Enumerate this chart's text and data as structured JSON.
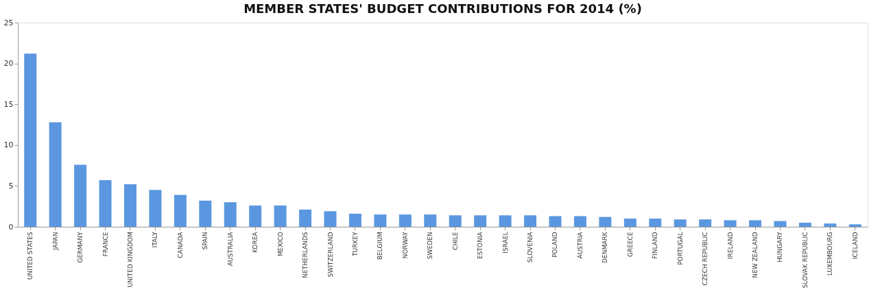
{
  "chart_data": {
    "type": "bar",
    "title": "MEMBER STATES' BUDGET CONTRIBUTIONS FOR 2014 (%)",
    "categories": [
      "UNITED STATES",
      "JAPAN",
      "GERMANY",
      "FRANCE",
      "UNITED KINGDOM",
      "ITALY",
      "CANADA",
      "SPAIN",
      "AUSTRALIA",
      "KOREA",
      "MEXICO",
      "NETHERLANDS",
      "SWITZERLAND",
      "TURKEY",
      "BELGIUM",
      "NORWAY",
      "SWEDEN",
      "CHILE",
      "ESTONIA",
      "ISRAEL",
      "SLOVENIA",
      "POLAND",
      "AUSTRIA",
      "DENMARK",
      "GREECE",
      "FINLAND",
      "PORTUGAL",
      "CZECH REPUBLIC",
      "IRELAND",
      "NEW ZEALAND",
      "HUNGARY",
      "SLOVAK REPUBLIC",
      "LUXEMBOURG",
      "ICELAND"
    ],
    "values": [
      21.2,
      12.8,
      7.6,
      5.7,
      5.2,
      4.5,
      3.9,
      3.2,
      3.0,
      2.6,
      2.6,
      2.1,
      1.9,
      1.6,
      1.5,
      1.5,
      1.5,
      1.4,
      1.4,
      1.4,
      1.4,
      1.3,
      1.3,
      1.2,
      1.0,
      1.0,
      0.9,
      0.9,
      0.8,
      0.8,
      0.7,
      0.5,
      0.4,
      0.3
    ],
    "color": "#5b97e0",
    "ylim": [
      0,
      25
    ],
    "yticks": [
      0,
      5,
      10,
      15,
      20,
      25
    ],
    "grid": false
  }
}
